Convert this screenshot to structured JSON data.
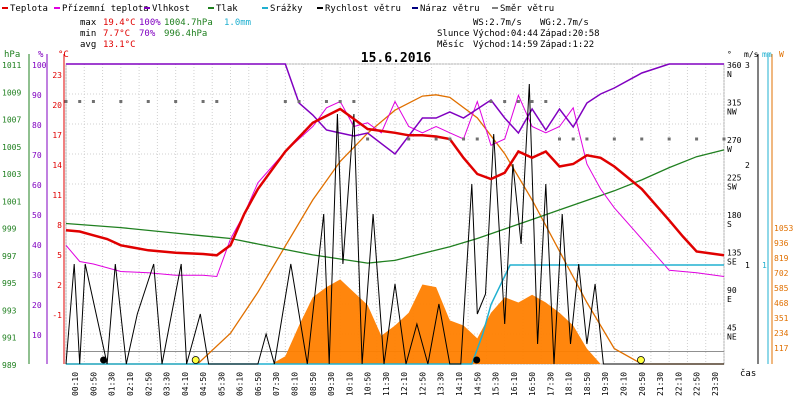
{
  "chart_data": {
    "type": "line",
    "title": "15.6.2016",
    "legend": [
      {
        "label": "Teplota",
        "color": "#e00000"
      },
      {
        "label": "Přízemní teplota",
        "color": "#e000e0"
      },
      {
        "label": "Vlhkost",
        "color": "#8000c0"
      },
      {
        "label": "Tlak",
        "color": "#208020"
      },
      {
        "label": "Srážky",
        "color": "#20b0d0"
      },
      {
        "label": "Rychlost větru",
        "color": "#000000"
      },
      {
        "label": "Náraz větru",
        "color": "#000080"
      },
      {
        "label": "Směr větru",
        "color": "#808080"
      }
    ],
    "stats": {
      "max": {
        "label": "max",
        "temp": "19.4°C",
        "hum": "100%",
        "press": "1004.7hPa",
        "rain": "1.0mm"
      },
      "min": {
        "label": "min",
        "temp": "7.7°C",
        "hum": "70%",
        "press": "996.4hPa"
      },
      "avg": {
        "label": "avg",
        "temp": "13.1°C"
      }
    },
    "wind_info": {
      "ws": "WS:2.7m/s",
      "wg": "WG:2.7m/s"
    },
    "sun": {
      "label": "Slunce",
      "rise": "Východ:04:44",
      "set": "Západ:20:58"
    },
    "moon": {
      "label": "Měsíc",
      "rise": "Východ:14:59",
      "set": "Západ:1:22"
    },
    "axes": {
      "hpa_unit": "hPa",
      "hpa_ticks": [
        "1011",
        "1009",
        "1007",
        "1005",
        "1003",
        "1001",
        "999",
        "997",
        "995",
        "993",
        "991",
        "989"
      ],
      "pct_unit": "%",
      "pct_ticks": [
        "100",
        "90",
        "80",
        "70",
        "60",
        "50",
        "40",
        "30",
        "20",
        "10"
      ],
      "c_unit": "°C",
      "c_ticks": [
        "23",
        "20",
        "17",
        "14",
        "11",
        "8",
        "5",
        "2",
        "-1"
      ],
      "dir_unit": "°",
      "dir_ticks": [
        [
          "360",
          "N"
        ],
        [
          "315",
          "NW"
        ],
        [
          "270",
          "W"
        ],
        [
          "225",
          "SW"
        ],
        [
          "180",
          "S"
        ],
        [
          "135",
          "SE"
        ],
        [
          "90",
          "E"
        ],
        [
          "45",
          "NE"
        ]
      ],
      "ms_unit": "m/s",
      "ms_ticks": [
        "3",
        "2",
        "1"
      ],
      "mm_unit": "mm",
      "mm_ticks": [
        "1"
      ],
      "w_unit": "W",
      "w_ticks": [
        "1053",
        "936",
        "819",
        "702",
        "585",
        "468",
        "351",
        "234",
        "117"
      ],
      "x_label": "čas",
      "x_ticks": [
        "00:10",
        "00:50",
        "01:30",
        "02:10",
        "02:50",
        "03:30",
        "04:10",
        "04:50",
        "05:30",
        "06:10",
        "06:50",
        "07:30",
        "08:10",
        "08:50",
        "09:30",
        "10:10",
        "10:50",
        "11:30",
        "12:10",
        "12:50",
        "13:30",
        "14:10",
        "14:50",
        "15:30",
        "16:10",
        "16:50",
        "17:30",
        "18:10",
        "18:50",
        "19:30",
        "20:10",
        "20:50",
        "21:30",
        "22:10",
        "22:50",
        "23:30"
      ]
    },
    "series": {
      "temperature": {
        "hours": [
          0,
          0.5,
          1,
          1.5,
          2,
          3,
          4,
          5,
          5.5,
          6,
          6.5,
          7,
          8,
          9,
          10,
          10.5,
          11,
          12,
          12.5,
          13,
          13.5,
          14,
          14.5,
          15,
          15.5,
          16,
          16.5,
          17,
          17.5,
          18,
          18.5,
          19,
          19.5,
          20,
          21,
          22,
          22.5,
          23,
          24
        ],
        "values": [
          9.7,
          9.6,
          9.3,
          9.0,
          8.5,
          8.1,
          7.9,
          7.8,
          7.7,
          8.5,
          11,
          13,
          16,
          18.3,
          19.4,
          18.6,
          17.8,
          17.5,
          17.3,
          17.3,
          17.2,
          17.0,
          15.5,
          14.2,
          13.8,
          14.3,
          16,
          15.5,
          16.0,
          14.8,
          15.0,
          15.7,
          15.5,
          14.8,
          13,
          10.5,
          9.2,
          8.0,
          7.7
        ]
      },
      "ground_temperature": {
        "hours": [
          0,
          0.5,
          1,
          2,
          3,
          4,
          5,
          5.5,
          6,
          6.5,
          7,
          8,
          9,
          9.5,
          10,
          10.5,
          11,
          11.5,
          12,
          12.5,
          13,
          13.5,
          14,
          14.5,
          15,
          15.5,
          16,
          16.5,
          17,
          17.5,
          18,
          18.5,
          19,
          19.5,
          20,
          21,
          22,
          23,
          24
        ],
        "values": [
          8.5,
          7.2,
          7.0,
          6.4,
          6.3,
          6.1,
          6.1,
          6.0,
          9,
          11,
          13.5,
          16,
          18,
          19.5,
          20,
          18,
          18.3,
          17.5,
          20,
          18,
          17.5,
          18,
          17.5,
          17,
          20,
          16.5,
          17,
          20.5,
          18,
          17.5,
          18,
          19.5,
          15,
          13,
          11.5,
          9,
          6.5,
          6.3,
          6
        ]
      },
      "humidity": {
        "hours": [
          0,
          7,
          8,
          8.5,
          9,
          9.5,
          10,
          10.5,
          11,
          12,
          13,
          13.5,
          14,
          14.5,
          15,
          15.5,
          16,
          16.5,
          17,
          17.5,
          18,
          18.5,
          19,
          19.5,
          20,
          21,
          22,
          23,
          24
        ],
        "values": [
          100,
          100,
          100,
          87,
          83,
          78,
          77,
          76,
          77,
          70,
          82,
          82,
          84,
          82,
          85,
          88,
          82,
          77,
          85,
          78,
          85,
          79,
          87,
          90,
          92,
          97,
          100,
          100,
          100
        ]
      },
      "pressure": {
        "hours": [
          0,
          2,
          4,
          5,
          6,
          7,
          8,
          9,
          10,
          11,
          12,
          13,
          14,
          15,
          16,
          17,
          18,
          19,
          20,
          21,
          22,
          23,
          24
        ],
        "values": [
          999.3,
          999.0,
          998.6,
          998.4,
          998.2,
          997.8,
          997.4,
          997.0,
          996.7,
          996.4,
          996.6,
          997.1,
          997.6,
          998.2,
          998.9,
          999.6,
          1000.3,
          1001.0,
          1001.7,
          1002.5,
          1003.4,
          1004.2,
          1004.7
        ]
      },
      "rain": {
        "hours": [
          0,
          12,
          14.8,
          15.2,
          15.5,
          16.2,
          24
        ],
        "values": [
          0,
          0,
          0,
          0.3,
          0.6,
          1.0,
          1.0
        ]
      },
      "wind_speed": {
        "hours": [
          0,
          0.3,
          0.5,
          0.7,
          1.5,
          1.8,
          2.2,
          2.6,
          3.2,
          3.5,
          4.2,
          4.4,
          4.9,
          5.2,
          6,
          7,
          7.3,
          7.6,
          8.2,
          8.8,
          9.4,
          9.6,
          9.9,
          10.1,
          10.5,
          10.8,
          11.2,
          11.6,
          12.0,
          12.4,
          12.8,
          13.2,
          13.6,
          14.0,
          14.4,
          14.8,
          15.0,
          15.3,
          15.6,
          16,
          16.3,
          16.6,
          16.9,
          17.2,
          17.5,
          17.8,
          18.1,
          18.4,
          18.7,
          19.0,
          19.3,
          19.6,
          20,
          24
        ],
        "values": [
          0,
          1,
          0,
          1,
          0,
          1,
          0,
          0.5,
          1,
          0,
          1,
          0,
          0.5,
          0,
          0,
          0,
          0.3,
          0,
          1,
          0,
          1.5,
          0,
          2.5,
          1,
          2.5,
          0,
          1.5,
          0,
          0.8,
          0,
          0.4,
          0,
          0.6,
          0,
          0,
          1.8,
          0.5,
          0.7,
          2.3,
          0.4,
          2.0,
          1.2,
          2.8,
          0.2,
          1.8,
          0,
          1.5,
          0.2,
          1.0,
          0.2,
          0.8,
          0,
          0,
          0
        ]
      },
      "wind_direction": {
        "hours": [
          0,
          0.5,
          1,
          2,
          3,
          4,
          5,
          5.5,
          8,
          8.5,
          9.5,
          10,
          10.5,
          11,
          12.5,
          13.5,
          14,
          14.5,
          15,
          15.5,
          16,
          16.5,
          17,
          17.5,
          18,
          18.5,
          19,
          20,
          21,
          22,
          23,
          24
        ],
        "values": [
          315,
          315,
          315,
          315,
          315,
          315,
          315,
          315,
          315,
          315,
          315,
          315,
          315,
          270,
          270,
          270,
          270,
          270,
          270,
          315,
          315,
          315,
          315,
          315,
          270,
          270,
          270,
          270,
          270,
          270,
          270,
          270
        ]
      },
      "solar": {
        "hours": [
          0,
          4.8,
          6,
          7,
          8,
          9,
          10,
          11,
          12,
          13,
          13.5,
          14,
          15,
          16,
          17,
          18,
          19,
          20,
          21,
          24
        ],
        "values": [
          0,
          0,
          120,
          280,
          460,
          640,
          790,
          900,
          990,
          1045,
          1050,
          1040,
          960,
          820,
          640,
          440,
          240,
          60,
          0,
          0
        ]
      },
      "solar_measured": {
        "hours": [
          7.5,
          8,
          8.5,
          9,
          9.5,
          10,
          10.5,
          11,
          11.5,
          12,
          12.5,
          13,
          13.5,
          14,
          14.5,
          15,
          15.5,
          16,
          16.5,
          17,
          17.5,
          18,
          18.5,
          19,
          19.5
        ],
        "values": [
          0,
          30,
          150,
          260,
          300,
          330,
          280,
          230,
          110,
          150,
          200,
          310,
          300,
          170,
          150,
          100,
          200,
          260,
          240,
          270,
          240,
          200,
          150,
          60,
          0
        ]
      }
    }
  }
}
